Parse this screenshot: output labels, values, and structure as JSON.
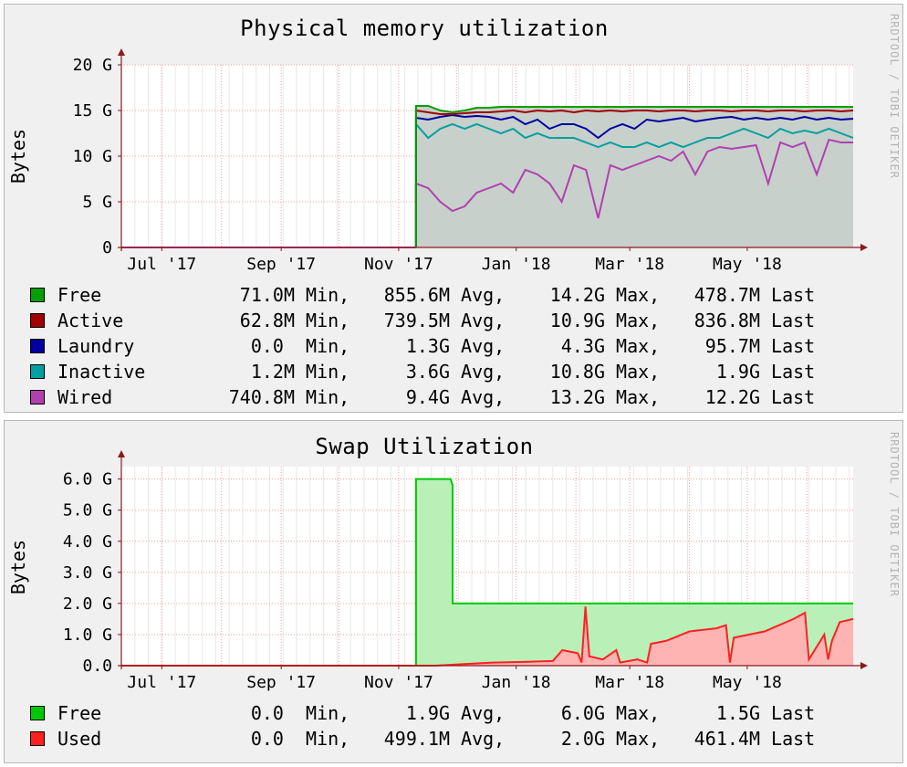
{
  "credit": "RRDTOOL / TOBI OETIKER",
  "x_ticks": [
    "Jul '17",
    "Sep '17",
    "Nov '17",
    "Jan '18",
    "Mar '18",
    "May '18"
  ],
  "chart_data": [
    {
      "type": "area",
      "title": "Physical memory utilization",
      "ylabel": "Bytes",
      "xlabel": "",
      "stacked": true,
      "ylim": [
        0,
        20
      ],
      "y_unit": "G",
      "y_ticks": [
        "0",
        "5 G",
        "10 G",
        "15 G",
        "20 G"
      ],
      "x_range": [
        "2017-06-10",
        "2018-06-25"
      ],
      "data_start": "2017-11-10",
      "series": [
        {
          "name": "Wired",
          "color": "#b040b0",
          "values": [
            7.0,
            6.5,
            5.0,
            4.0,
            4.5,
            6.0,
            6.5,
            7.0,
            6.0,
            8.5,
            8.0,
            7.0,
            5.0,
            9.0,
            8.5,
            3.2,
            9.0,
            8.5,
            9.0,
            9.5,
            10.0,
            9.5,
            10.5,
            8.0,
            10.5,
            11.0,
            10.8,
            11.0,
            11.2,
            7.0,
            11.5,
            11.0,
            11.5,
            8.0,
            11.8,
            11.5,
            11.5
          ]
        },
        {
          "name": "Inactive",
          "color": "#00a0a0",
          "values": [
            13.5,
            12.0,
            13.0,
            13.5,
            13.0,
            13.5,
            13.0,
            12.5,
            13.0,
            12.0,
            12.5,
            12.0,
            12.0,
            12.0,
            11.5,
            11.0,
            11.5,
            11.0,
            11.0,
            11.5,
            11.0,
            11.5,
            11.0,
            11.5,
            12.0,
            12.0,
            12.5,
            13.0,
            12.5,
            12.0,
            13.0,
            12.5,
            12.8,
            12.5,
            13.0,
            12.5,
            12.0
          ]
        },
        {
          "name": "Laundry",
          "color": "#0000a0",
          "values": [
            14.2,
            14.0,
            14.3,
            14.5,
            14.3,
            14.4,
            14.3,
            14.0,
            14.3,
            13.5,
            14.0,
            13.0,
            13.5,
            13.5,
            13.0,
            12.0,
            13.0,
            13.5,
            13.0,
            14.0,
            13.8,
            14.0,
            14.2,
            13.8,
            14.0,
            14.2,
            14.3,
            14.0,
            14.2,
            14.0,
            14.2,
            14.0,
            14.3,
            14.0,
            14.2,
            14.0,
            14.1
          ]
        },
        {
          "name": "Active",
          "color": "#a00000",
          "values": [
            15.0,
            14.8,
            14.6,
            14.6,
            14.7,
            14.8,
            14.8,
            14.9,
            15.0,
            14.8,
            15.0,
            14.9,
            15.0,
            14.8,
            15.0,
            14.9,
            15.0,
            14.9,
            15.0,
            15.0,
            14.9,
            15.0,
            15.0,
            14.9,
            15.0,
            15.0,
            14.9,
            15.0,
            15.0,
            14.9,
            15.0,
            15.0,
            14.9,
            15.0,
            15.0,
            14.9,
            15.0
          ]
        },
        {
          "name": "Free",
          "color": "#00a000",
          "values": [
            15.5,
            15.5,
            15.0,
            14.8,
            15.0,
            15.3,
            15.3,
            15.4,
            15.4,
            15.4,
            15.4,
            15.4,
            15.4,
            15.4,
            15.4,
            15.4,
            15.4,
            15.4,
            15.4,
            15.4,
            15.4,
            15.4,
            15.4,
            15.4,
            15.4,
            15.4,
            15.4,
            15.4,
            15.4,
            15.4,
            15.4,
            15.4,
            15.4,
            15.4,
            15.4,
            15.4,
            15.4
          ]
        }
      ],
      "legend_placement": "bottom",
      "legend": [
        {
          "name": "Free",
          "color": "#00a000",
          "min": "71.0M",
          "avg": "855.6M",
          "max": "14.2G",
          "last": "478.7M"
        },
        {
          "name": "Active",
          "color": "#a00000",
          "min": "62.8M",
          "avg": "739.5M",
          "max": "10.9G",
          "last": "836.8M"
        },
        {
          "name": "Laundry",
          "color": "#0000a0",
          "min": "0.0 ",
          "avg": "1.3G",
          "max": "4.3G",
          "last": "95.7M"
        },
        {
          "name": "Inactive",
          "color": "#00a0a0",
          "min": "1.2M",
          "avg": "3.6G",
          "max": "10.8G",
          "last": "1.9G"
        },
        {
          "name": "Wired",
          "color": "#b040b0",
          "min": "740.8M",
          "avg": "9.4G",
          "max": "13.2G",
          "last": "12.2G"
        }
      ]
    },
    {
      "type": "area",
      "title": "Swap Utilization",
      "ylabel": "Bytes",
      "xlabel": "",
      "ylim": [
        0,
        6.4
      ],
      "y_unit": "G",
      "y_ticks": [
        "0.0",
        "1.0 G",
        "2.0 G",
        "3.0 G",
        "4.0 G",
        "5.0 G",
        "6.0 G"
      ],
      "x_range": [
        "2017-06-10",
        "2018-06-25"
      ],
      "series": [
        {
          "name": "Free",
          "color": "#00c800",
          "fill": "#b8f0b8",
          "points": [
            [
              "2017-06-10",
              0
            ],
            [
              "2017-11-10",
              0
            ],
            [
              "2017-11-10",
              6.0
            ],
            [
              "2017-11-28",
              6.0
            ],
            [
              "2017-11-29",
              5.8
            ],
            [
              "2017-11-29",
              2.0
            ],
            [
              "2018-06-25",
              2.0
            ]
          ]
        },
        {
          "name": "Used",
          "color": "#ff2020",
          "fill": "#ffb4b4",
          "points": [
            [
              "2017-06-10",
              0
            ],
            [
              "2017-11-20",
              0
            ],
            [
              "2017-12-05",
              0.05
            ],
            [
              "2017-12-20",
              0.1
            ],
            [
              "2018-01-05",
              0.12
            ],
            [
              "2018-01-20",
              0.15
            ],
            [
              "2018-01-25",
              0.5
            ],
            [
              "2018-02-02",
              0.4
            ],
            [
              "2018-02-04",
              0.1
            ],
            [
              "2018-02-06",
              1.9
            ],
            [
              "2018-02-08",
              0.3
            ],
            [
              "2018-02-15",
              0.2
            ],
            [
              "2018-02-22",
              0.5
            ],
            [
              "2018-02-24",
              0.1
            ],
            [
              "2018-03-05",
              0.2
            ],
            [
              "2018-03-10",
              0.1
            ],
            [
              "2018-03-12",
              0.7
            ],
            [
              "2018-03-20",
              0.8
            ],
            [
              "2018-04-01",
              1.1
            ],
            [
              "2018-04-15",
              1.2
            ],
            [
              "2018-04-20",
              1.3
            ],
            [
              "2018-04-22",
              0.1
            ],
            [
              "2018-04-24",
              0.9
            ],
            [
              "2018-05-10",
              1.1
            ],
            [
              "2018-05-25",
              1.5
            ],
            [
              "2018-05-31",
              1.7
            ],
            [
              "2018-06-02",
              0.2
            ],
            [
              "2018-06-05",
              0.5
            ],
            [
              "2018-06-10",
              1.0
            ],
            [
              "2018-06-12",
              0.2
            ],
            [
              "2018-06-14",
              0.8
            ],
            [
              "2018-06-18",
              1.4
            ],
            [
              "2018-06-25",
              1.5
            ]
          ]
        }
      ],
      "legend_placement": "bottom",
      "legend": [
        {
          "name": "Free",
          "color": "#00c800",
          "min": "0.0 ",
          "avg": "1.9G",
          "max": "6.0G",
          "last": "1.5G"
        },
        {
          "name": "Used",
          "color": "#ff2020",
          "min": "0.0 ",
          "avg": "499.1M",
          "max": "2.0G",
          "last": "461.4M"
        }
      ]
    }
  ]
}
